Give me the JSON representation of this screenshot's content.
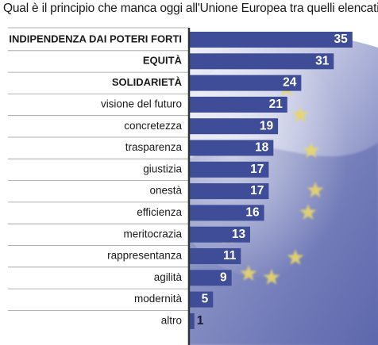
{
  "question": "Qual è il principio che manca oggi all'Unione Europea tra quelli elencati?",
  "colors": {
    "bar": "#3f4c97",
    "bar_label": "#ffffff",
    "bar_label_outside": "#1a1a2e",
    "category_text": "#1a1a1a",
    "separator": "#9a9a9a",
    "axis": "#333333",
    "flag_bg": "#5d68ad",
    "star": "#e8d76a"
  },
  "chart_data": {
    "type": "bar",
    "orientation": "horizontal",
    "categories": [
      "INDIPENDENZA DAI POTERI FORTI",
      "EQUITÀ",
      "SOLIDARIETÀ",
      "visione del futuro",
      "concretezza",
      "trasparenza",
      "giustizia",
      "onestà",
      "efficienza",
      "meritocrazia",
      "rappresentanza",
      "agilità",
      "modernità",
      "altro"
    ],
    "values": [
      35,
      31,
      24,
      21,
      19,
      18,
      17,
      17,
      16,
      13,
      11,
      9,
      5,
      1
    ],
    "value_labels": [
      "35",
      "31",
      "24",
      "21",
      "19",
      "18",
      "17",
      "17",
      "16",
      "13",
      "11",
      "9",
      "5",
      "1"
    ],
    "bold": [
      true,
      true,
      true,
      false,
      false,
      false,
      false,
      false,
      false,
      false,
      false,
      false,
      false,
      false
    ],
    "xlim": [
      0,
      40
    ],
    "grid": false,
    "background": "blurred European Union flag with yellow stars"
  }
}
